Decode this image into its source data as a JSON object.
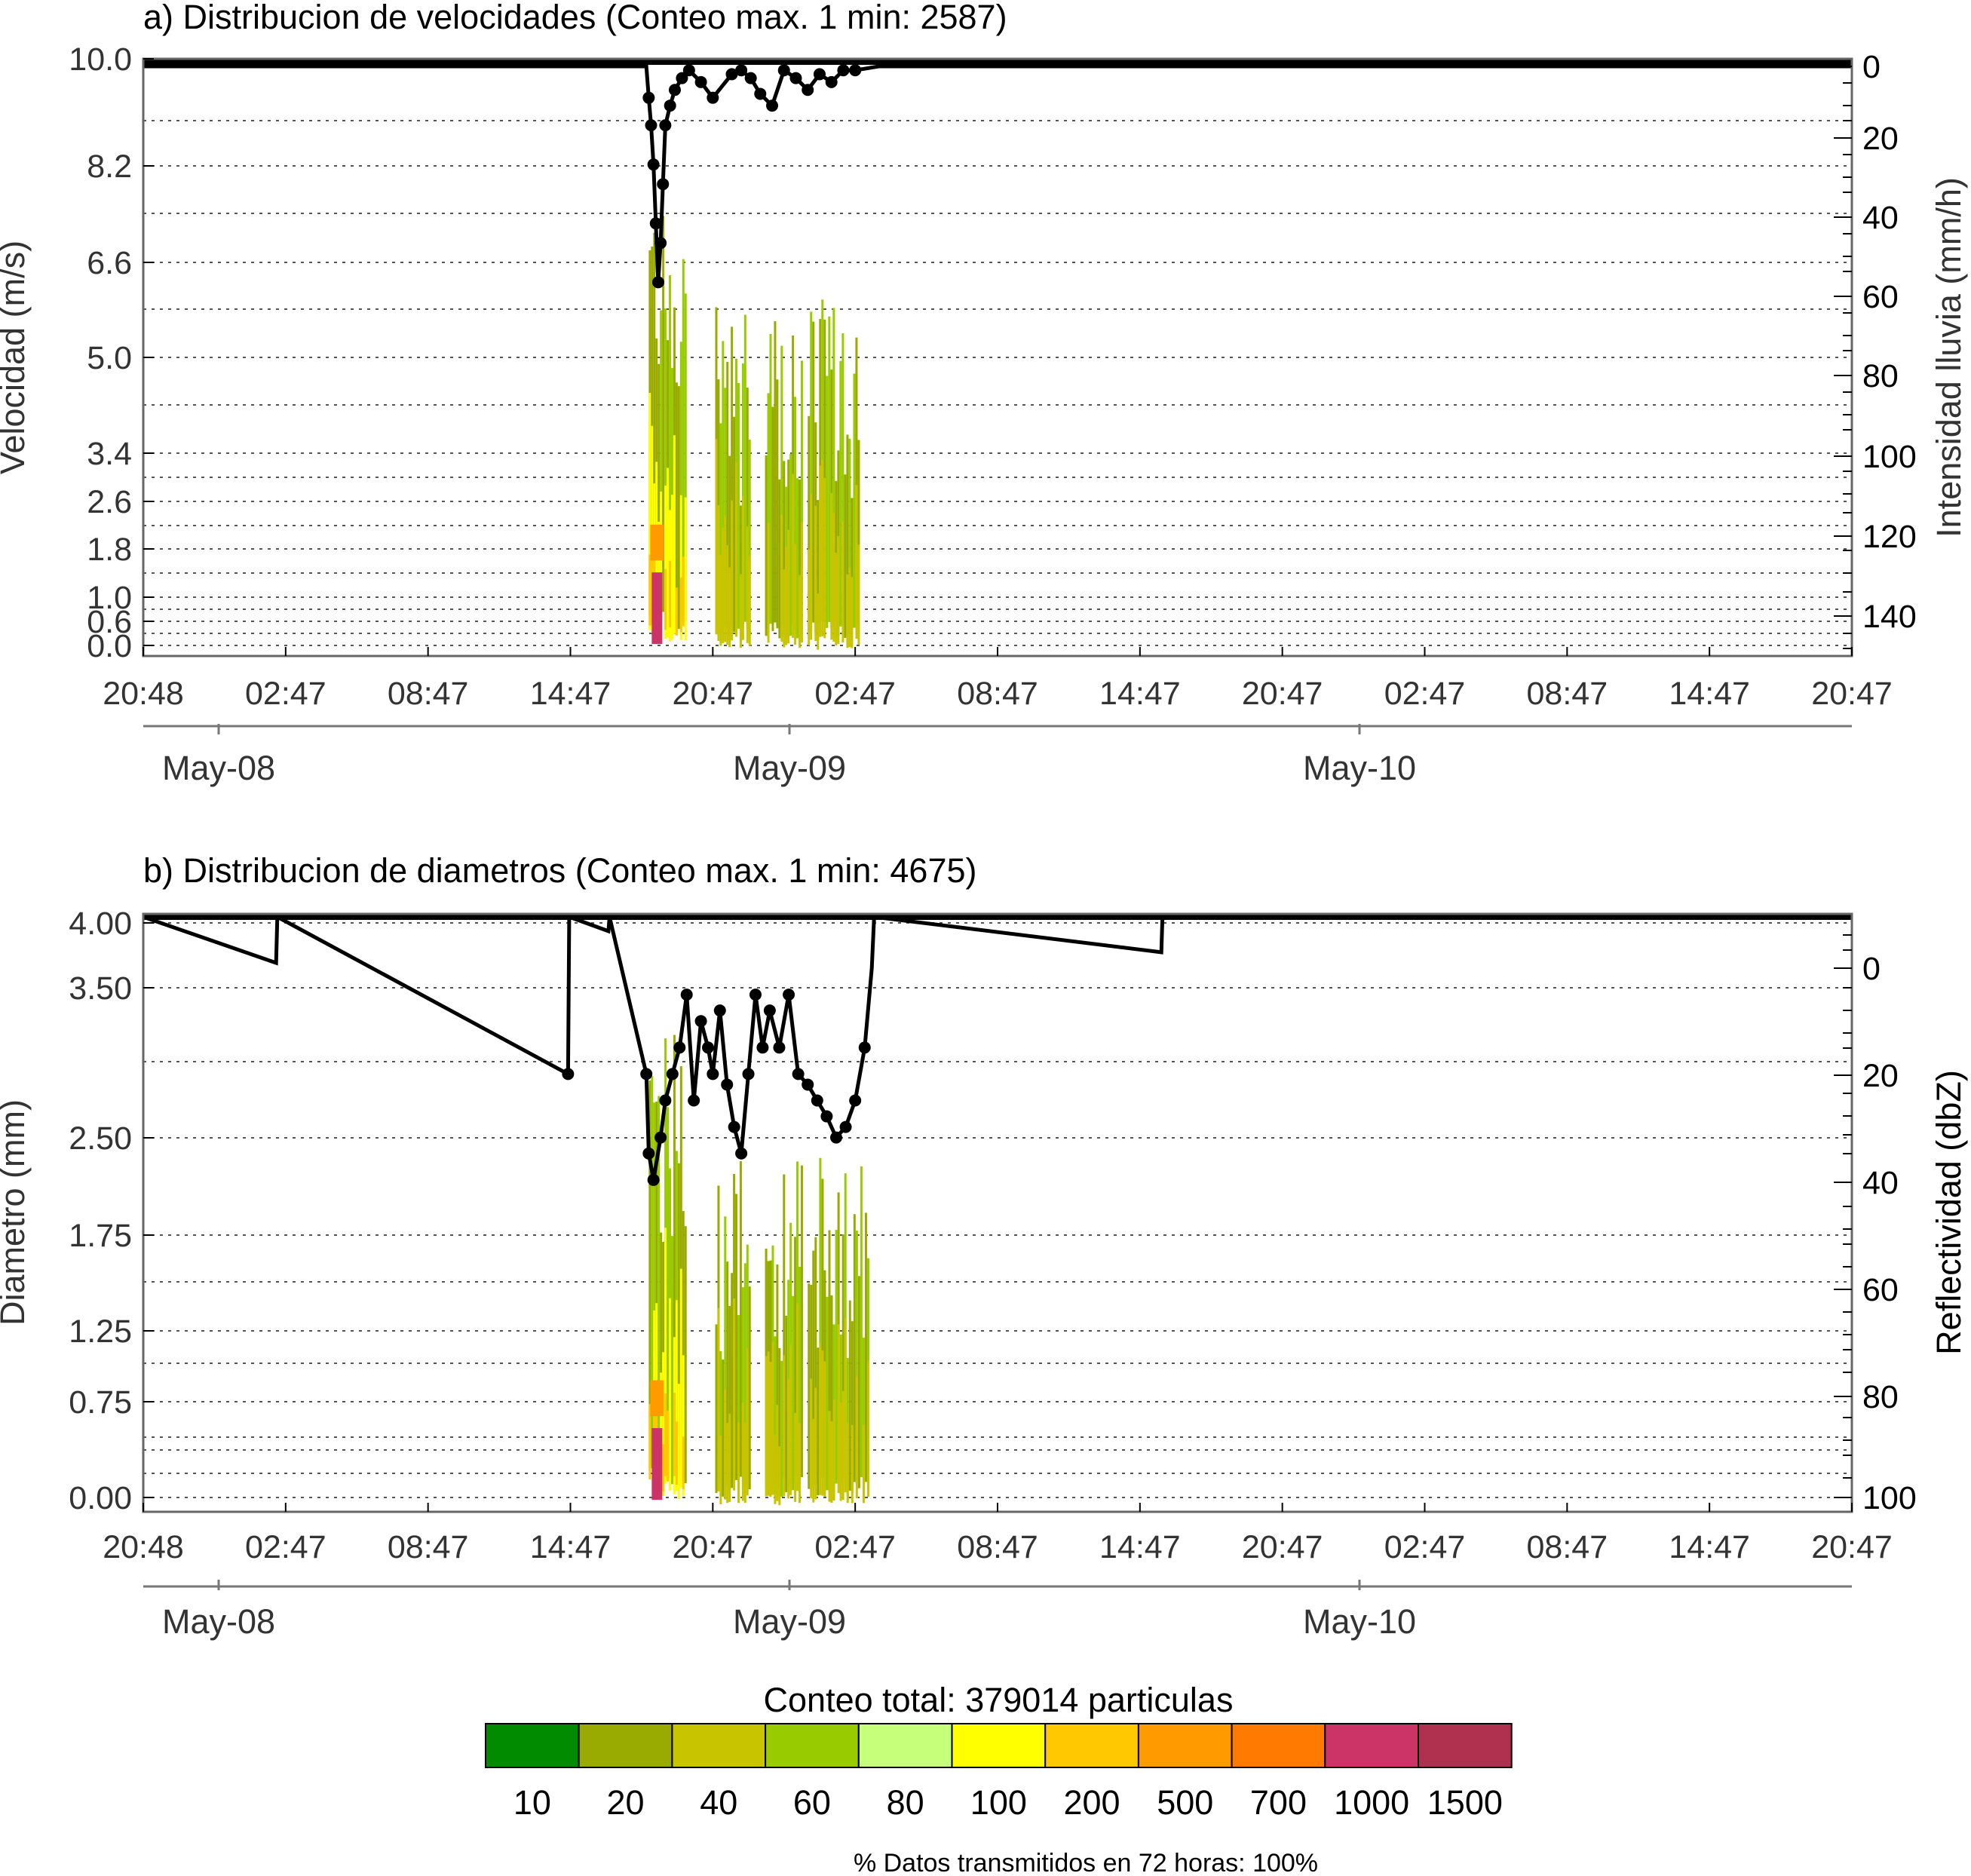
{
  "chart_data": [
    {
      "type": "heatmap",
      "panel_title": "a) Distribucion de velocidades (Conteo max. 1 min: 2587)",
      "ylabel": "Velocidad (m/s)",
      "ylabel_right": "Intensidad lluvia (mm/h)",
      "yticks": [
        "10.0",
        "8.2",
        "6.6",
        "5.0",
        "3.4",
        "2.6",
        "1.8",
        "1.0",
        "0.6",
        "0.0"
      ],
      "yticks_right": [
        "0",
        "20",
        "40",
        "60",
        "80",
        "100",
        "120",
        "140"
      ],
      "ylim_right": [
        0,
        150
      ],
      "xticks": [
        "20:48",
        "02:47",
        "08:47",
        "14:47",
        "20:47",
        "02:47",
        "08:47",
        "14:47",
        "20:47",
        "02:47",
        "08:47",
        "14:47",
        "20:47"
      ],
      "dates": [
        "May-08",
        "May-09",
        "May-10"
      ],
      "grid": "horizontal dotted",
      "overlay_series": {
        "x_hours": [
          0,
          21.2,
          21.3,
          21.4,
          21.5,
          21.6,
          21.7,
          21.8,
          21.9,
          22.0,
          22.2,
          22.4,
          22.7,
          23.0,
          23.5,
          24.0,
          24.8,
          25.2,
          25.6,
          26.0,
          26.5,
          27.0,
          27.5,
          28.0,
          28.5,
          29.0,
          29.5,
          30.0,
          31.0,
          72
        ],
        "values": [
          0,
          0,
          8,
          15,
          25,
          40,
          55,
          45,
          30,
          15,
          10,
          6,
          3,
          1,
          4,
          8,
          2,
          1,
          3,
          7,
          10,
          1,
          3,
          6,
          2,
          4,
          1,
          1,
          0,
          0
        ]
      },
      "density_regions_hours": [
        [
          21.3,
          22.9
        ],
        [
          24.1,
          25.6
        ],
        [
          26.2,
          27.8
        ],
        [
          28.0,
          30.2
        ]
      ]
    },
    {
      "type": "heatmap",
      "panel_title": "b) Distribucion de diametros (Conteo max. 1 min: 4675)",
      "ylabel": "Diametro (mm)",
      "ylabel_right": "Reflectividad (dbZ)",
      "yticks": [
        "4.00",
        "3.50",
        "2.50",
        "1.75",
        "1.25",
        "0.75",
        "0.00"
      ],
      "yticks_right": [
        "0",
        "20",
        "40",
        "60",
        "80",
        "100"
      ],
      "xticks": [
        "20:48",
        "02:47",
        "08:47",
        "14:47",
        "20:47",
        "02:47",
        "08:47",
        "14:47",
        "20:47",
        "02:47",
        "08:47",
        "14:47",
        "20:47"
      ],
      "dates": [
        "May-08",
        "May-09",
        "May-10"
      ],
      "grid": "horizontal dotted",
      "overlay_series": {
        "x_hours": [
          0,
          5.6,
          5.65,
          17.9,
          17.95,
          19.6,
          19.65,
          21.2,
          21.3,
          21.5,
          21.8,
          22.0,
          22.3,
          22.6,
          22.9,
          23.2,
          23.5,
          23.8,
          24.0,
          24.3,
          24.6,
          24.9,
          25.2,
          25.5,
          25.8,
          26.1,
          26.4,
          26.8,
          27.2,
          27.6,
          28.0,
          28.4,
          28.8,
          29.2,
          29.6,
          30.0,
          30.4,
          30.7,
          30.8,
          42.9,
          42.95,
          72
        ],
        "values": [
          -10,
          -1,
          -10,
          20,
          -10,
          -7,
          -10,
          20,
          35,
          40,
          32,
          25,
          20,
          15,
          5,
          25,
          10,
          15,
          20,
          8,
          22,
          30,
          35,
          20,
          5,
          15,
          8,
          15,
          5,
          20,
          22,
          25,
          28,
          32,
          30,
          25,
          15,
          0,
          -10,
          -3,
          -10,
          -10
        ]
      },
      "density_regions_hours": [
        [
          21.3,
          22.9
        ],
        [
          24.1,
          25.6
        ],
        [
          26.2,
          27.8
        ],
        [
          28.0,
          30.6
        ]
      ]
    }
  ],
  "colorbar": {
    "title": "Conteo total: 379014 particulas",
    "labels": [
      "10",
      "20",
      "40",
      "60",
      "80",
      "100",
      "200",
      "500",
      "700",
      "1000",
      "1500"
    ],
    "colors": [
      "#008b00",
      "#99ab00",
      "#c9c400",
      "#99cc00",
      "#c6ff7a",
      "#ffff00",
      "#ffc800",
      "#ff9b00",
      "#ff7a00",
      "#cc3366",
      "#b03050"
    ]
  },
  "footer": "% Datos transmitidos en 72 horas: 100%"
}
